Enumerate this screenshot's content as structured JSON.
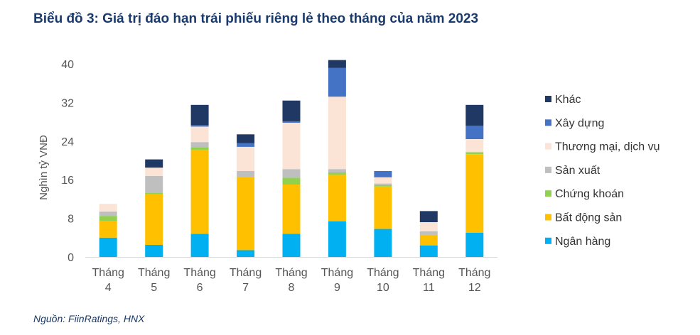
{
  "title": "Biểu đồ 3: Giá trị đáo hạn trái phiếu riêng lẻ theo tháng của năm 2023",
  "source": "Nguồn: FiinRatings, HNX",
  "chart_data": {
    "type": "bar",
    "stacked": true,
    "ylabel": "Nghìn tỷ VNĐ",
    "ylim": [
      0,
      40
    ],
    "yticks": [
      0,
      8,
      16,
      24,
      32,
      40
    ],
    "categories": [
      [
        "Tháng",
        "4"
      ],
      [
        "Tháng",
        "5"
      ],
      [
        "Tháng",
        "6"
      ],
      [
        "Tháng",
        "7"
      ],
      [
        "Tháng",
        "8"
      ],
      [
        "Tháng",
        "9"
      ],
      [
        "Tháng",
        "10"
      ],
      [
        "Tháng",
        "11"
      ],
      [
        "Tháng",
        "12"
      ]
    ],
    "legend_position": "right",
    "series": [
      {
        "name": "Ngân hàng",
        "color": "#00b0f0",
        "values": [
          4.0,
          2.5,
          4.8,
          1.4,
          4.8,
          7.4,
          5.8,
          2.4,
          5.0
        ]
      },
      {
        "name": "Bất động sản",
        "color": "#ffc000",
        "values": [
          3.5,
          10.5,
          17.4,
          15.2,
          10.2,
          9.6,
          8.8,
          2.2,
          16.3
        ]
      },
      {
        "name": "Chứng khoán",
        "color": "#92d050",
        "values": [
          1.0,
          0.3,
          0.5,
          0.0,
          1.4,
          0.5,
          0.3,
          0.0,
          0.4
        ]
      },
      {
        "name": "Sản xuất",
        "color": "#bfbfbf",
        "values": [
          0.9,
          3.5,
          1.1,
          1.2,
          1.8,
          0.7,
          0.3,
          0.7,
          0.0
        ]
      },
      {
        "name": "Thương mại, dịch vụ",
        "color": "#fbe4d5",
        "values": [
          1.6,
          1.7,
          3.2,
          5.0,
          9.6,
          15.0,
          1.3,
          1.9,
          2.7
        ]
      },
      {
        "name": "Xây dựng",
        "color": "#4472c4",
        "values": [
          0.0,
          0.0,
          0.3,
          0.8,
          0.3,
          6.0,
          1.3,
          0.0,
          2.8
        ]
      },
      {
        "name": "Khác",
        "color": "#1f3864",
        "values": [
          0.0,
          1.7,
          4.2,
          1.8,
          4.3,
          1.6,
          0.0,
          2.3,
          4.3
        ]
      }
    ],
    "legend_order": [
      "Khác",
      "Xây dựng",
      "Thương mại, dịch vụ",
      "Sản xuất",
      "Chứng khoán",
      "Bất động sản",
      "Ngân hàng"
    ],
    "axis_color": "#d9d9d9"
  }
}
